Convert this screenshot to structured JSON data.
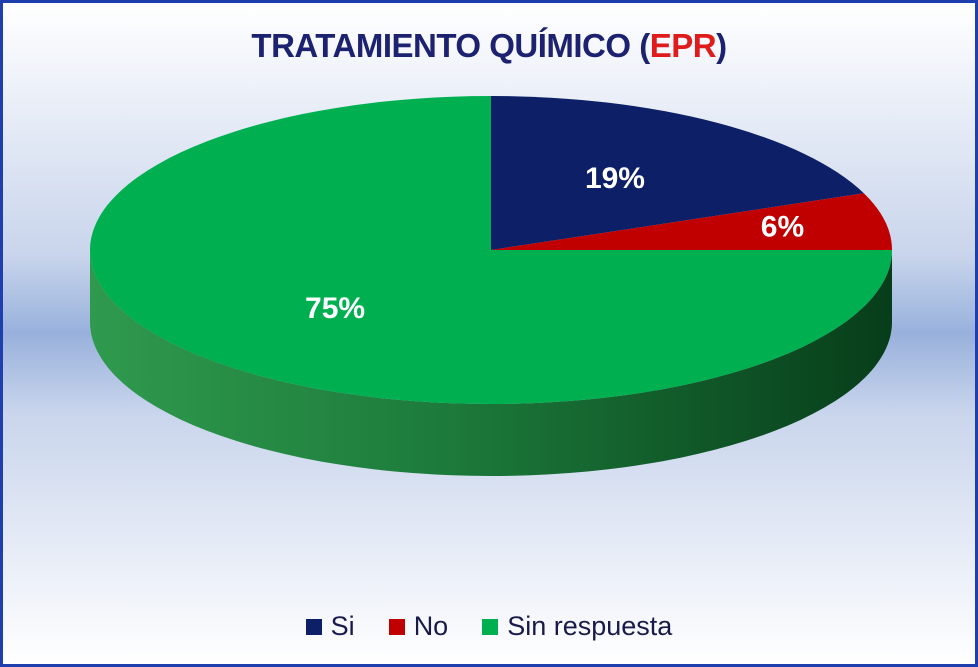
{
  "chart_data": {
    "type": "pie",
    "title": {
      "main": "TRATAMIENTO QUÍMICO (",
      "accent": "EPR",
      "end": ")"
    },
    "slices": [
      {
        "label": "Si",
        "value": 19,
        "display": "19%",
        "color": "#0d1f66"
      },
      {
        "label": "No",
        "value": 6,
        "display": "6%",
        "color": "#c00000"
      },
      {
        "label": "Sin respuesta",
        "value": 75,
        "display": "75%",
        "color": "#00b050"
      }
    ],
    "legend_position": "bottom",
    "style": "3d"
  }
}
